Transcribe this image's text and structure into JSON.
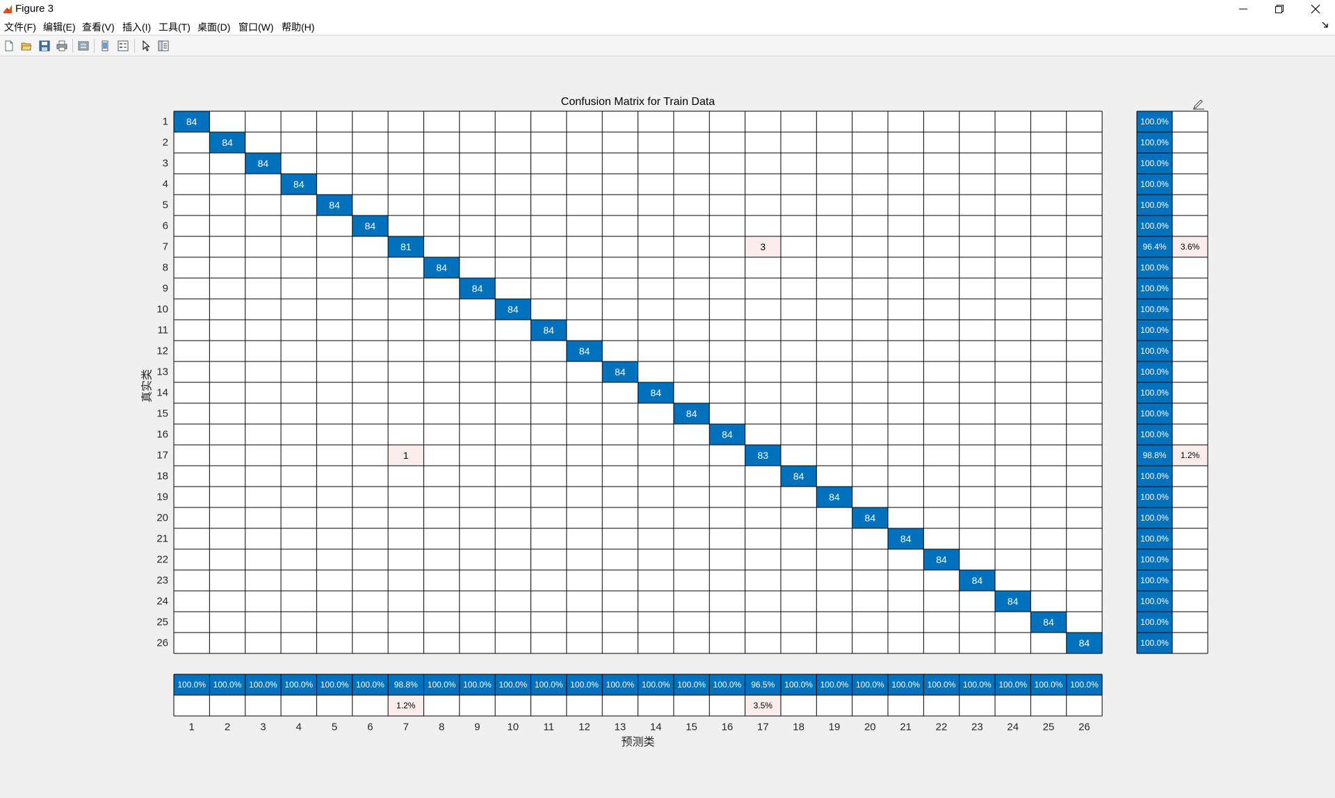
{
  "window": {
    "title": "Figure 3",
    "controls": {
      "minimize": "minimize-icon",
      "restore": "restore-icon",
      "close": "close-icon"
    }
  },
  "menu": [
    "文件(F)",
    "编辑(E)",
    "查看(V)",
    "插入(I)",
    "工具(T)",
    "桌面(D)",
    "窗口(W)",
    "帮助(H)"
  ],
  "toolbar": {
    "icons": [
      "new-figure-icon",
      "open-file-icon",
      "save-icon",
      "print-icon",
      "print-preview-icon",
      "link-plot-icon",
      "insert-legend-icon",
      "select-pointer-icon",
      "property-inspector-icon"
    ]
  },
  "colors": {
    "diagonal": "#0072BD",
    "offdiagonal": "#FBEDEC",
    "grid": "#000000",
    "summary_text": "#ffffff"
  },
  "chart_data": {
    "type": "heatmap",
    "title": "Confusion Matrix for Train Data",
    "xlabel": "预测类",
    "ylabel": "真实类",
    "classes": [
      "1",
      "2",
      "3",
      "4",
      "5",
      "6",
      "7",
      "8",
      "9",
      "10",
      "11",
      "12",
      "13",
      "14",
      "15",
      "16",
      "17",
      "18",
      "19",
      "20",
      "21",
      "22",
      "23",
      "24",
      "25",
      "26"
    ],
    "diagonal_counts": [
      84,
      84,
      84,
      84,
      84,
      84,
      81,
      84,
      84,
      84,
      84,
      84,
      84,
      84,
      84,
      84,
      83,
      84,
      84,
      84,
      84,
      84,
      84,
      84,
      84,
      84
    ],
    "off_diagonal": [
      {
        "true": "7",
        "predicted": "17",
        "count": 3
      },
      {
        "true": "17",
        "predicted": "7",
        "count": 1
      }
    ],
    "row_summary": {
      "correct": [
        "100.0%",
        "100.0%",
        "100.0%",
        "100.0%",
        "100.0%",
        "100.0%",
        "96.4%",
        "100.0%",
        "100.0%",
        "100.0%",
        "100.0%",
        "100.0%",
        "100.0%",
        "100.0%",
        "100.0%",
        "100.0%",
        "98.8%",
        "100.0%",
        "100.0%",
        "100.0%",
        "100.0%",
        "100.0%",
        "100.0%",
        "100.0%",
        "100.0%",
        "100.0%"
      ],
      "incorrect": [
        "",
        "",
        "",
        "",
        "",
        "",
        "3.6%",
        "",
        "",
        "",
        "",
        "",
        "",
        "",
        "",
        "",
        "1.2%",
        "",
        "",
        "",
        "",
        "",
        "",
        "",
        "",
        ""
      ]
    },
    "column_summary": {
      "correct": [
        "100.0%",
        "100.0%",
        "100.0%",
        "100.0%",
        "100.0%",
        "100.0%",
        "98.8%",
        "100.0%",
        "100.0%",
        "100.0%",
        "100.0%",
        "100.0%",
        "100.0%",
        "100.0%",
        "100.0%",
        "100.0%",
        "96.5%",
        "100.0%",
        "100.0%",
        "100.0%",
        "100.0%",
        "100.0%",
        "100.0%",
        "100.0%",
        "100.0%",
        "100.0%"
      ],
      "incorrect": [
        "",
        "",
        "",
        "",
        "",
        "",
        "1.2%",
        "",
        "",
        "",
        "",
        "",
        "",
        "",
        "",
        "",
        "3.5%",
        "",
        "",
        "",
        "",
        "",
        "",
        "",
        "",
        ""
      ]
    }
  }
}
